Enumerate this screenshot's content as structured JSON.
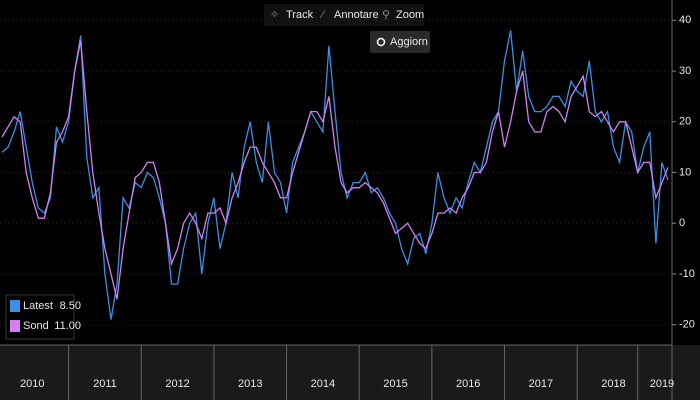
{
  "toolbar": [
    "Track",
    "Annotare",
    "Zoom"
  ],
  "button": "Aggiorn",
  "chart_data": {
    "type": "line",
    "categories": [
      null,
      null,
      null,
      null,
      null,
      "2010",
      null,
      null,
      null,
      null,
      null,
      null,
      null,
      null,
      null,
      null,
      null,
      "2011",
      null,
      null,
      null,
      null,
      null,
      null,
      null,
      null,
      null,
      null,
      null,
      "2012",
      null,
      null,
      null,
      null,
      null,
      null,
      null,
      null,
      null,
      null,
      null,
      "2013",
      null,
      null,
      null,
      null,
      null,
      null,
      null,
      null,
      null,
      null,
      null,
      "2014",
      null,
      null,
      null,
      null,
      null,
      null,
      null,
      null,
      null,
      null,
      null,
      "2015",
      null,
      null,
      null,
      null,
      null,
      null,
      null,
      null,
      null,
      null,
      null,
      "2016",
      null,
      null,
      null,
      null,
      null,
      null,
      null,
      null,
      null,
      null,
      null,
      "2017",
      null,
      null,
      null,
      null,
      null,
      null,
      null,
      null,
      null,
      null,
      null,
      "2018",
      null,
      null,
      null,
      null,
      null,
      null,
      null,
      "2019",
      null
    ],
    "series": [
      {
        "name": "Latest",
        "color": "#3a8fe6",
        "legend_value": "8.50",
        "values": [
          14,
          15,
          18,
          22,
          15,
          8,
          3,
          2,
          5,
          19,
          16,
          20,
          30,
          37,
          13,
          5,
          7,
          -10,
          -19,
          -12,
          5,
          3,
          8,
          7,
          10,
          9,
          5,
          0,
          -12,
          -12,
          -5,
          0,
          2,
          -10,
          0,
          5,
          -5,
          0,
          10,
          5,
          15,
          20,
          12,
          8,
          20,
          10,
          8,
          2,
          12,
          15,
          18,
          22,
          20,
          18,
          35,
          22,
          10,
          5,
          8,
          8,
          10,
          6,
          7,
          5,
          2,
          0,
          -5,
          -8,
          -3,
          -2,
          -6,
          0,
          10,
          5,
          2,
          5,
          3,
          8,
          12,
          10,
          15,
          20,
          22,
          32,
          38,
          26,
          34,
          25,
          22,
          22,
          23,
          25,
          25,
          23,
          28,
          26,
          25,
          32,
          22,
          20,
          22,
          15,
          12,
          20,
          18,
          10,
          15,
          18,
          -4,
          12,
          8.5
        ]
      },
      {
        "name": "Sond",
        "color": "#d27ff0",
        "legend_value": "11.00",
        "values": [
          17,
          19,
          21,
          20,
          10,
          5,
          1,
          1,
          6,
          16,
          18,
          21,
          30,
          36,
          22,
          10,
          2,
          -5,
          -10,
          -15,
          -5,
          2,
          9,
          10,
          12,
          12,
          8,
          0,
          -8,
          -5,
          0,
          2,
          0,
          -3,
          2,
          2,
          3,
          0,
          5,
          8,
          12,
          15,
          15,
          12,
          10,
          8,
          5,
          5,
          10,
          14,
          18,
          22,
          22,
          20,
          25,
          15,
          8,
          6,
          7,
          7,
          8,
          7,
          6,
          4,
          1,
          -2,
          -1,
          0,
          -2,
          -4,
          -5,
          -2,
          2,
          2,
          3,
          2,
          5,
          7,
          10,
          10,
          12,
          18,
          22,
          15,
          20,
          26,
          30,
          20,
          18,
          18,
          22,
          23,
          22,
          20,
          25,
          27,
          29,
          22,
          21,
          22,
          20,
          18,
          20,
          20,
          15,
          10,
          12,
          12,
          5,
          8,
          11
        ]
      }
    ],
    "ylim": [
      -24,
      44
    ],
    "yticks": [
      -20,
      -10,
      0,
      10,
      20,
      30,
      40
    ],
    "grid": true
  }
}
